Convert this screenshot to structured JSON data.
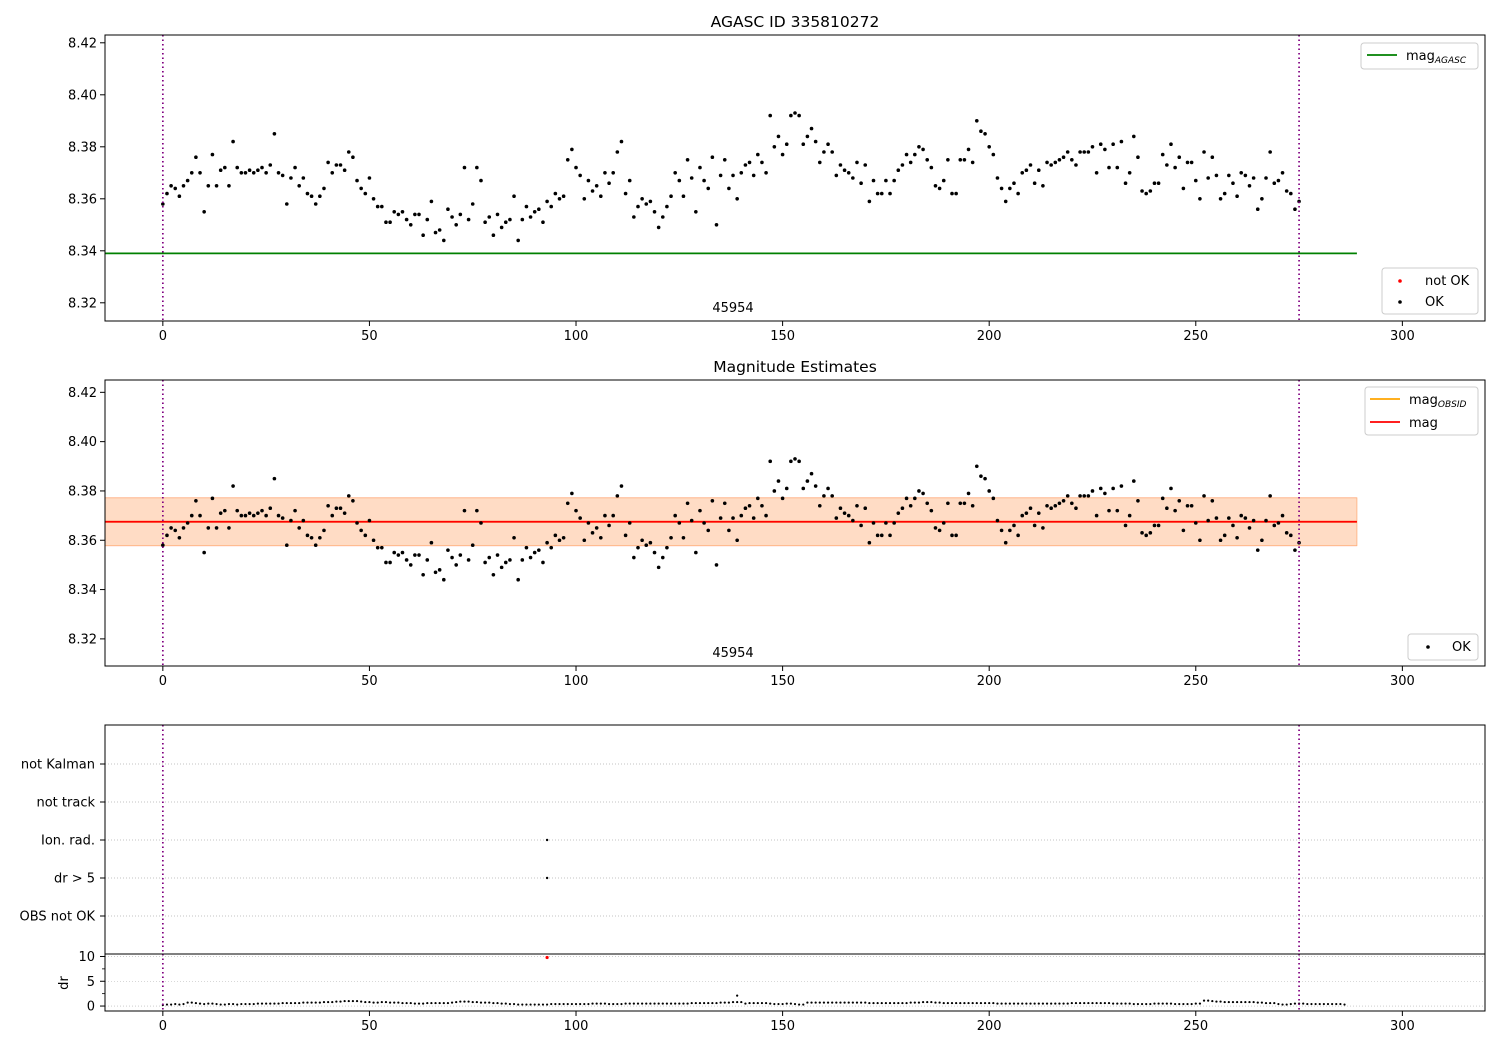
{
  "chart_data": [
    {
      "type": "scatter",
      "title": "AGASC ID 335810272",
      "annotation": "45954",
      "xlim": [
        -14,
        320
      ],
      "ylim": [
        8.313,
        8.423
      ],
      "xticks": [
        "0",
        "50",
        "100",
        "150",
        "200",
        "250",
        "300"
      ],
      "yticks": [
        "8.32",
        "8.34",
        "8.36",
        "8.38",
        "8.40",
        "8.42"
      ],
      "vlines": [
        0,
        275
      ],
      "mag_agasc": 8.339,
      "mag_agasc_span": [
        -14,
        289
      ],
      "legend_lines": [
        "mag",
        "AGASC"
      ],
      "legend_points": [
        "not OK",
        "OK"
      ],
      "series": "ok_mag"
    },
    {
      "type": "scatter",
      "title": "Magnitude Estimates",
      "annotation": "45954",
      "xlim": [
        -14,
        320
      ],
      "ylim": [
        8.309,
        8.425
      ],
      "xticks": [
        "0",
        "50",
        "100",
        "150",
        "200",
        "250",
        "300"
      ],
      "yticks": [
        "8.32",
        "8.34",
        "8.36",
        "8.38",
        "8.40",
        "8.42"
      ],
      "vlines": [
        0,
        275
      ],
      "mag": 8.3675,
      "mag_obsid": 8.3675,
      "band_outer": [
        8.3575,
        8.3775
      ],
      "band_inner": [
        8.3578,
        8.3772
      ],
      "band_span": [
        -14,
        289
      ],
      "legend_lines": [
        [
          "mag",
          "OBSID"
        ],
        [
          "mag",
          ""
        ]
      ],
      "legend_points": [
        "OK"
      ],
      "series": "ok_mag"
    },
    {
      "type": "scatter",
      "categories": [
        "OBS not OK",
        "dr > 5",
        "Ion. rad.",
        "not track",
        "not Kalman"
      ],
      "flagged_points": [
        {
          "x": 93,
          "flags": [
            "dr > 5",
            "Ion. rad."
          ]
        }
      ],
      "xlim": [
        -14,
        320
      ],
      "vlines": [
        0,
        275
      ]
    },
    {
      "type": "scatter",
      "ylabel": "dr",
      "xlim": [
        -14,
        320
      ],
      "ylim": [
        -1,
        10.5
      ],
      "xticks": [
        "0",
        "50",
        "100",
        "150",
        "200",
        "250",
        "300"
      ],
      "yticks": [
        "0",
        "5",
        "10"
      ],
      "vlines": [
        0,
        275
      ],
      "outlier": {
        "x": 93,
        "y": 9.8
      },
      "spike": {
        "x": 139,
        "y": 2.1
      },
      "series": "dr"
    }
  ],
  "series_data": {
    "ok_mag": [
      8.358,
      8.362,
      8.365,
      8.364,
      8.361,
      8.365,
      8.367,
      8.37,
      8.376,
      8.37,
      8.355,
      8.365,
      8.377,
      8.365,
      8.371,
      8.372,
      8.365,
      8.382,
      8.372,
      8.37,
      8.37,
      8.371,
      8.37,
      8.371,
      8.372,
      8.37,
      8.373,
      8.385,
      8.37,
      8.369,
      8.358,
      8.368,
      8.372,
      8.365,
      8.368,
      8.362,
      8.361,
      8.358,
      8.361,
      8.364,
      8.374,
      8.37,
      8.373,
      8.373,
      8.371,
      8.378,
      8.376,
      8.367,
      8.364,
      8.362,
      8.368,
      8.36,
      8.357,
      8.357,
      8.351,
      8.351,
      8.355,
      8.354,
      8.355,
      8.352,
      8.35,
      8.354,
      8.354,
      8.346,
      8.352,
      8.359,
      8.347,
      8.348,
      8.344,
      8.356,
      8.353,
      8.35,
      8.354,
      8.372,
      8.352,
      8.358,
      8.372,
      8.367,
      8.351,
      8.353,
      8.346,
      8.354,
      8.349,
      8.351,
      8.352,
      8.361,
      8.344,
      8.352,
      8.357,
      8.353,
      8.355,
      8.356,
      8.351,
      8.359,
      8.357,
      8.362,
      8.36,
      8.361,
      8.375,
      8.379,
      8.372,
      8.369,
      8.36,
      8.367,
      8.363,
      8.365,
      8.361,
      8.37,
      8.366,
      8.37,
      8.378,
      8.382,
      8.362,
      8.367,
      8.353,
      8.357,
      8.36,
      8.358,
      8.359,
      8.355,
      8.349,
      8.353,
      8.357,
      8.361,
      8.37,
      8.367,
      8.361,
      8.375,
      8.368,
      8.355,
      8.372,
      8.367,
      8.364,
      8.376,
      8.35,
      8.369,
      8.375,
      8.364,
      8.369,
      8.36,
      8.37,
      8.373,
      8.374,
      8.369,
      8.377,
      8.374,
      8.37,
      8.392,
      8.38,
      8.384,
      8.377,
      8.381,
      8.392,
      8.393,
      8.392,
      8.381,
      8.384,
      8.387,
      8.382,
      8.374,
      8.378,
      8.381,
      8.378,
      8.369,
      8.373,
      8.371,
      8.37,
      8.368,
      8.374,
      8.366,
      8.373,
      8.359,
      8.367,
      8.362,
      8.362,
      8.367,
      8.362,
      8.367,
      8.371,
      8.373,
      8.377,
      8.374,
      8.377,
      8.38,
      8.379,
      8.375,
      8.372,
      8.365,
      8.364,
      8.367,
      8.375,
      8.362,
      8.362,
      8.375,
      8.375,
      8.379,
      8.374,
      8.39,
      8.386,
      8.385,
      8.38,
      8.377,
      8.368,
      8.364,
      8.359,
      8.364,
      8.366,
      8.362,
      8.37,
      8.371,
      8.373,
      8.366,
      8.371,
      8.365,
      8.374,
      8.373,
      8.374,
      8.375,
      8.376,
      8.378,
      8.375,
      8.373,
      8.378,
      8.378,
      8.378,
      8.38,
      8.37,
      8.381,
      8.379,
      8.372,
      8.381,
      8.372,
      8.382,
      8.366,
      8.37,
      8.384,
      8.376,
      8.363,
      8.362,
      8.363,
      8.366,
      8.366,
      8.377,
      8.373,
      8.381,
      8.372,
      8.376,
      8.364,
      8.374,
      8.374,
      8.367,
      8.36,
      8.378,
      8.368,
      8.376,
      8.369,
      8.36,
      8.362,
      8.369,
      8.366,
      8.361,
      8.37,
      8.369,
      8.365,
      8.368,
      8.356,
      8.36,
      8.368,
      8.378,
      8.366,
      8.367,
      8.37,
      8.363,
      8.362,
      8.356,
      8.359
    ],
    "dr": [
      0.2,
      0.3,
      0.3,
      0.4,
      0.3,
      0.4,
      0.7,
      0.7,
      0.6,
      0.5,
      0.4,
      0.5,
      0.5,
      0.4,
      0.3,
      0.3,
      0.4,
      0.4,
      0.3,
      0.4,
      0.4,
      0.4,
      0.4,
      0.5,
      0.5,
      0.5,
      0.5,
      0.5,
      0.5,
      0.6,
      0.6,
      0.6,
      0.6,
      0.6,
      0.7,
      0.7,
      0.7,
      0.7,
      0.7,
      0.8,
      0.8,
      0.8,
      0.9,
      0.9,
      1.0,
      1.0,
      1.0,
      1.0,
      0.9,
      0.8,
      0.8,
      0.7,
      0.7,
      0.8,
      0.8,
      0.7,
      0.7,
      0.7,
      0.6,
      0.6,
      0.6,
      0.5,
      0.5,
      0.5,
      0.6,
      0.6,
      0.6,
      0.6,
      0.6,
      0.6,
      0.7,
      0.8,
      0.9,
      0.9,
      0.9,
      0.8,
      0.8,
      0.7,
      0.7,
      0.7,
      0.6,
      0.6,
      0.5,
      0.5,
      0.4,
      0.4,
      0.3,
      0.3,
      0.3,
      0.3,
      0.3,
      0.3,
      0.3,
      0.3,
      0.4,
      0.4,
      0.4,
      0.4,
      0.4,
      0.4,
      0.4,
      0.4,
      0.4,
      0.4,
      0.5,
      0.5,
      0.5,
      0.5,
      0.4,
      0.4,
      0.4,
      0.4,
      0.5,
      0.5,
      0.5,
      0.5,
      0.5,
      0.5,
      0.5,
      0.5,
      0.5,
      0.5,
      0.5,
      0.5,
      0.5,
      0.5,
      0.5,
      0.5,
      0.6,
      0.6,
      0.6,
      0.6,
      0.6,
      0.6,
      0.6,
      0.7,
      0.7,
      0.7,
      0.8,
      0.8,
      0.8,
      0.5,
      0.6,
      0.6,
      0.6,
      0.6,
      0.6,
      0.5,
      0.4,
      0.4,
      0.4,
      0.5,
      0.5,
      0.4,
      0.3,
      0.3,
      0.7,
      0.7,
      0.7,
      0.7,
      0.7,
      0.7,
      0.7,
      0.7,
      0.7,
      0.7,
      0.7,
      0.7,
      0.7,
      0.7,
      0.7,
      0.6,
      0.6,
      0.6,
      0.6,
      0.6,
      0.6,
      0.6,
      0.6,
      0.6,
      0.6,
      0.7,
      0.7,
      0.7,
      0.8,
      0.8,
      0.8,
      0.7,
      0.7,
      0.6,
      0.6,
      0.6,
      0.6,
      0.6,
      0.6,
      0.6,
      0.6,
      0.6,
      0.6,
      0.6,
      0.6,
      0.6,
      0.5,
      0.5,
      0.5,
      0.5,
      0.5,
      0.5,
      0.5,
      0.5,
      0.5,
      0.5,
      0.5,
      0.5,
      0.5,
      0.5,
      0.5,
      0.5,
      0.5,
      0.5,
      0.6,
      0.6,
      0.6,
      0.6,
      0.6,
      0.6,
      0.6,
      0.6,
      0.6,
      0.6,
      0.5,
      0.5,
      0.5,
      0.5,
      0.5,
      0.4,
      0.4,
      0.4,
      0.4,
      0.4,
      0.5,
      0.5,
      0.5,
      0.5,
      0.5,
      0.4,
      0.4,
      0.4,
      0.4,
      0.4,
      0.5,
      0.5,
      1.1,
      1.1,
      1.0,
      0.9,
      0.9,
      0.8,
      0.8,
      0.8,
      0.8,
      0.8,
      0.8,
      0.8,
      0.8,
      0.7,
      0.7,
      0.6,
      0.6,
      0.6,
      0.4,
      0.3,
      0.3,
      0.4,
      0.5,
      0.5,
      0.5,
      0.4,
      0.4,
      0.4,
      0.4,
      0.4,
      0.4,
      0.4,
      0.4,
      0.4,
      0.3
    ]
  },
  "colors": {
    "ok": "#000000",
    "not_ok": "#ff0000",
    "mag_agasc": "#008000",
    "mag_obsid": "#ffa500",
    "mag": "#ff0000",
    "band_outer": "#ffc0cb",
    "band_inner": "#ffdab9",
    "vline": "#800080",
    "grid": "#b0b0b0"
  }
}
